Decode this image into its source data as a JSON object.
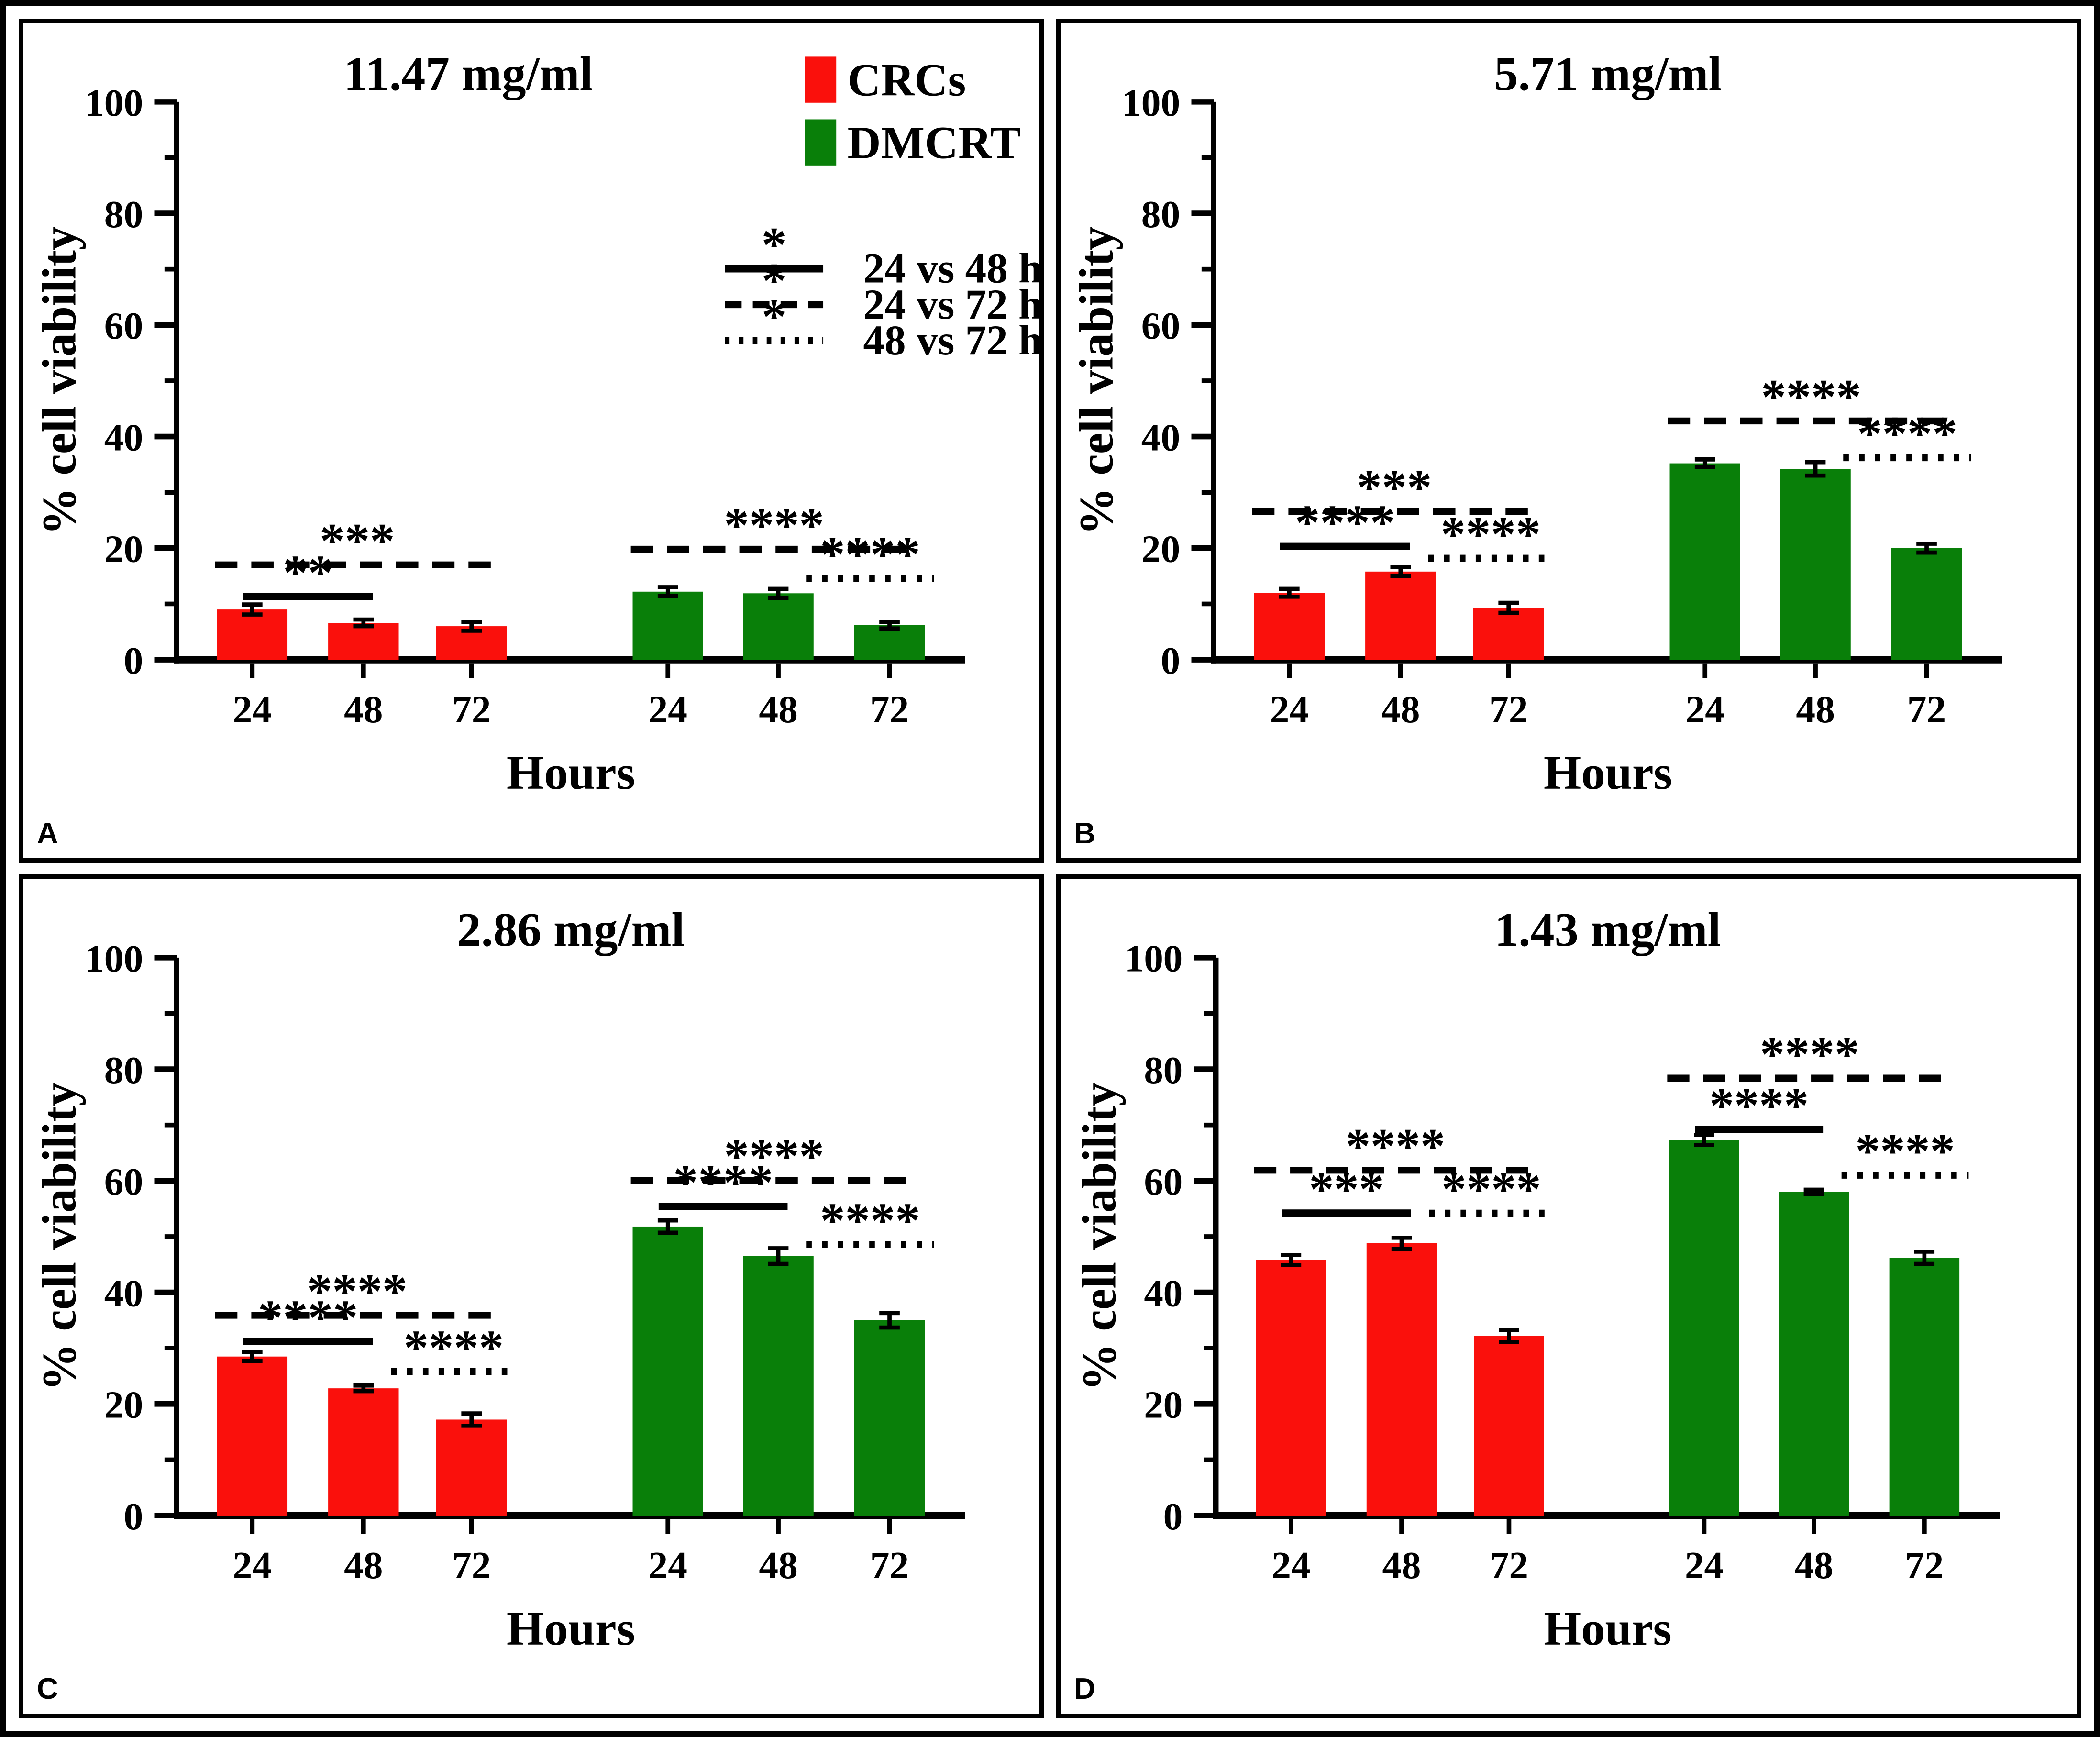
{
  "figure": {
    "background": "#ffffff",
    "border_color": "#000000",
    "crcs_color": "#fa100c",
    "dmcrt_color": "#097f09"
  },
  "chart_data": [
    {
      "type": "bar",
      "panel_label": "A",
      "title": "11.47 mg/ml",
      "title_frac": 0.37,
      "xlabel": "Hours",
      "ylabel": "% cell viability",
      "ylim": [
        0,
        100
      ],
      "yticks": [
        0,
        20,
        40,
        60,
        80,
        100
      ],
      "grid": false,
      "categories": [
        "24",
        "48",
        "72",
        "24",
        "48",
        "72"
      ],
      "series": [
        {
          "name": "CRCs",
          "color": "#fa100c",
          "values": [
            9.0,
            6.6,
            6.0
          ],
          "errors": [
            0.9,
            0.6,
            0.8
          ]
        },
        {
          "name": "DMCRT",
          "color": "#097f09",
          "values": [
            12.2,
            11.9,
            6.2
          ],
          "errors": [
            0.8,
            0.8,
            0.6
          ]
        }
      ],
      "significance": [
        {
          "style": "dashed",
          "label": "***",
          "bars": [
            0,
            2
          ],
          "y": 17.0
        },
        {
          "style": "solid",
          "label": "**",
          "bars": [
            0,
            1
          ],
          "y": 11.3
        },
        {
          "style": "dashed",
          "label": "****",
          "bars": [
            3,
            5
          ],
          "y": 19.8
        },
        {
          "style": "dotted",
          "label": "****",
          "bars": [
            4,
            5
          ],
          "y": 14.6
        }
      ],
      "series_legend": [
        {
          "label": "CRCs",
          "color": "#fa100c"
        },
        {
          "label": "DMCRT",
          "color": "#097f09"
        }
      ],
      "line_legend": [
        {
          "style": "solid",
          "stars": "*",
          "label": "24 vs 48 h"
        },
        {
          "style": "dashed",
          "stars": "*",
          "label": "24 vs 72 h"
        },
        {
          "style": "dotted",
          "stars": "*",
          "label": "48 vs 72 h"
        }
      ]
    },
    {
      "type": "bar",
      "panel_label": "B",
      "title": "5.71 mg/ml",
      "title_frac": 0.5,
      "xlabel": "Hours",
      "ylabel": "% cell viability",
      "ylim": [
        0,
        100
      ],
      "yticks": [
        0,
        20,
        40,
        60,
        80,
        100
      ],
      "grid": false,
      "categories": [
        "24",
        "48",
        "72",
        "24",
        "48",
        "72"
      ],
      "series": [
        {
          "name": "CRCs",
          "color": "#fa100c",
          "values": [
            12.0,
            15.8,
            9.3
          ],
          "errors": [
            0.7,
            0.8,
            0.9
          ]
        },
        {
          "name": "DMCRT",
          "color": "#097f09",
          "values": [
            35.2,
            34.2,
            20.0
          ],
          "errors": [
            0.7,
            1.2,
            0.8
          ]
        }
      ],
      "significance": [
        {
          "style": "solid",
          "label": "****",
          "bars": [
            0,
            1
          ],
          "y": 20.3
        },
        {
          "style": "dashed",
          "label": "***",
          "bars": [
            0,
            2
          ],
          "y": 26.6
        },
        {
          "style": "dotted",
          "label": "****",
          "bars": [
            1,
            2
          ],
          "y": 18.2
        },
        {
          "style": "dashed",
          "label": "****",
          "bars": [
            3,
            5
          ],
          "y": 42.8
        },
        {
          "style": "dotted",
          "label": "****",
          "bars": [
            4,
            5
          ],
          "y": 36.2
        }
      ]
    },
    {
      "type": "bar",
      "panel_label": "C",
      "title": "2.86 mg/ml",
      "title_frac": 0.5,
      "xlabel": "Hours",
      "ylabel": "% cell viability",
      "ylim": [
        0,
        100
      ],
      "yticks": [
        0,
        20,
        40,
        60,
        80,
        100
      ],
      "grid": false,
      "categories": [
        "24",
        "48",
        "72",
        "24",
        "48",
        "72"
      ],
      "series": [
        {
          "name": "CRCs",
          "color": "#fa100c",
          "values": [
            28.5,
            22.8,
            17.2
          ],
          "errors": [
            0.8,
            0.5,
            1.1
          ]
        },
        {
          "name": "DMCRT",
          "color": "#097f09",
          "values": [
            51.8,
            46.5,
            35.0
          ],
          "errors": [
            1.1,
            1.4,
            1.3
          ]
        }
      ],
      "significance": [
        {
          "style": "solid",
          "label": "****",
          "bars": [
            0,
            1
          ],
          "y": 31.2
        },
        {
          "style": "dashed",
          "label": "****",
          "bars": [
            0,
            2
          ],
          "y": 35.9
        },
        {
          "style": "dotted",
          "label": "****",
          "bars": [
            1,
            2
          ],
          "y": 25.8
        },
        {
          "style": "solid",
          "label": "****",
          "bars": [
            3,
            4
          ],
          "y": 55.4
        },
        {
          "style": "dashed",
          "label": "****",
          "bars": [
            3,
            5
          ],
          "y": 60.1
        },
        {
          "style": "dotted",
          "label": "****",
          "bars": [
            4,
            5
          ],
          "y": 48.6
        }
      ]
    },
    {
      "type": "bar",
      "panel_label": "D",
      "title": "1.43 mg/ml",
      "title_frac": 0.5,
      "xlabel": "Hours",
      "ylabel": "% cell viability",
      "ylim": [
        0,
        100
      ],
      "yticks": [
        0,
        20,
        40,
        60,
        80,
        100
      ],
      "grid": false,
      "categories": [
        "24",
        "48",
        "72",
        "24",
        "48",
        "72"
      ],
      "series": [
        {
          "name": "CRCs",
          "color": "#fa100c",
          "values": [
            45.8,
            48.8,
            32.2
          ],
          "errors": [
            0.9,
            1.0,
            1.1
          ]
        },
        {
          "name": "DMCRT",
          "color": "#097f09",
          "values": [
            67.3,
            58.0,
            46.2
          ],
          "errors": [
            0.9,
            0.4,
            1.1
          ]
        }
      ],
      "significance": [
        {
          "style": "solid",
          "label": "***",
          "bars": [
            0,
            1
          ],
          "y": 54.2
        },
        {
          "style": "dashed",
          "label": "****",
          "bars": [
            0,
            2
          ],
          "y": 61.9
        },
        {
          "style": "dotted",
          "label": "****",
          "bars": [
            1,
            2
          ],
          "y": 54.2
        },
        {
          "style": "solid",
          "label": "****",
          "bars": [
            3,
            4
          ],
          "y": 69.2
        },
        {
          "style": "dashed",
          "label": "****",
          "bars": [
            3,
            5
          ],
          "y": 78.4
        },
        {
          "style": "dotted",
          "label": "****",
          "bars": [
            4,
            5
          ],
          "y": 61.0
        }
      ]
    }
  ]
}
